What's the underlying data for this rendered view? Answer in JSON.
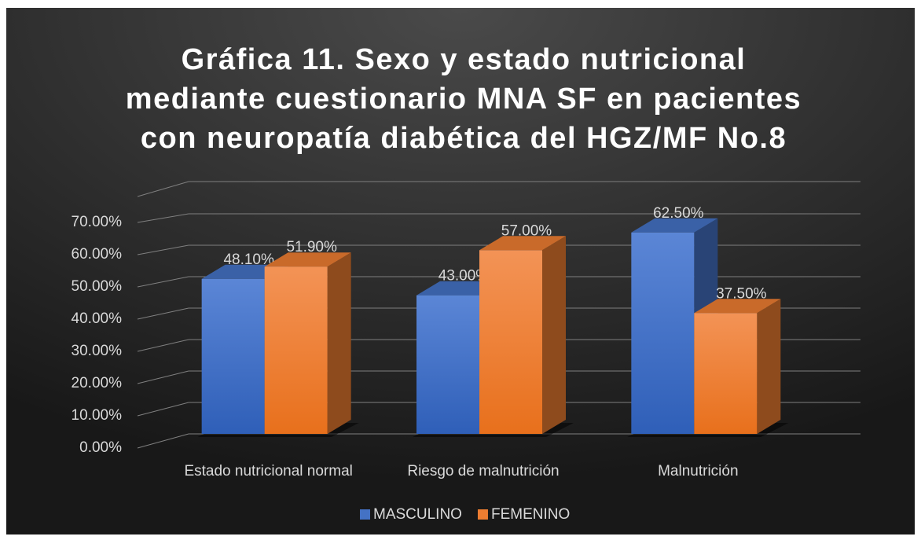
{
  "chart_data": {
    "type": "bar3d",
    "title": [
      "Gráfica 11. Sexo y estado nutricional",
      "mediante cuestionario MNA SF en pacientes",
      "con neuropatía diabética del HGZ/MF No.8"
    ],
    "categories": [
      "Estado nutricional normal",
      "Riesgo de malnutrición",
      "Malnutrición"
    ],
    "series": [
      {
        "name": "MASCULINO",
        "color": "#4472c4",
        "values": [
          48.1,
          43,
          62.5
        ],
        "value_labels": [
          "48.10%",
          "43.00%",
          "62.50%"
        ]
      },
      {
        "name": "FEMENINO",
        "color": "#ed7d31",
        "values": [
          51.9,
          57,
          37.5
        ],
        "value_labels": [
          "51.90%",
          "57.00%",
          "37.50%"
        ]
      }
    ],
    "ylim": [
      0,
      70
    ],
    "yticks": [
      {
        "value": 0,
        "label": "0.00%"
      },
      {
        "value": 10,
        "label": "10.00%"
      },
      {
        "value": 20,
        "label": "20.00%"
      },
      {
        "value": 30,
        "label": "30.00%"
      },
      {
        "value": 40,
        "label": "40.00%"
      },
      {
        "value": 50,
        "label": "50.00%"
      },
      {
        "value": 60,
        "label": "60.00%"
      },
      {
        "value": 70,
        "label": "70.00%"
      }
    ],
    "grid": true,
    "legend": "bottom"
  }
}
